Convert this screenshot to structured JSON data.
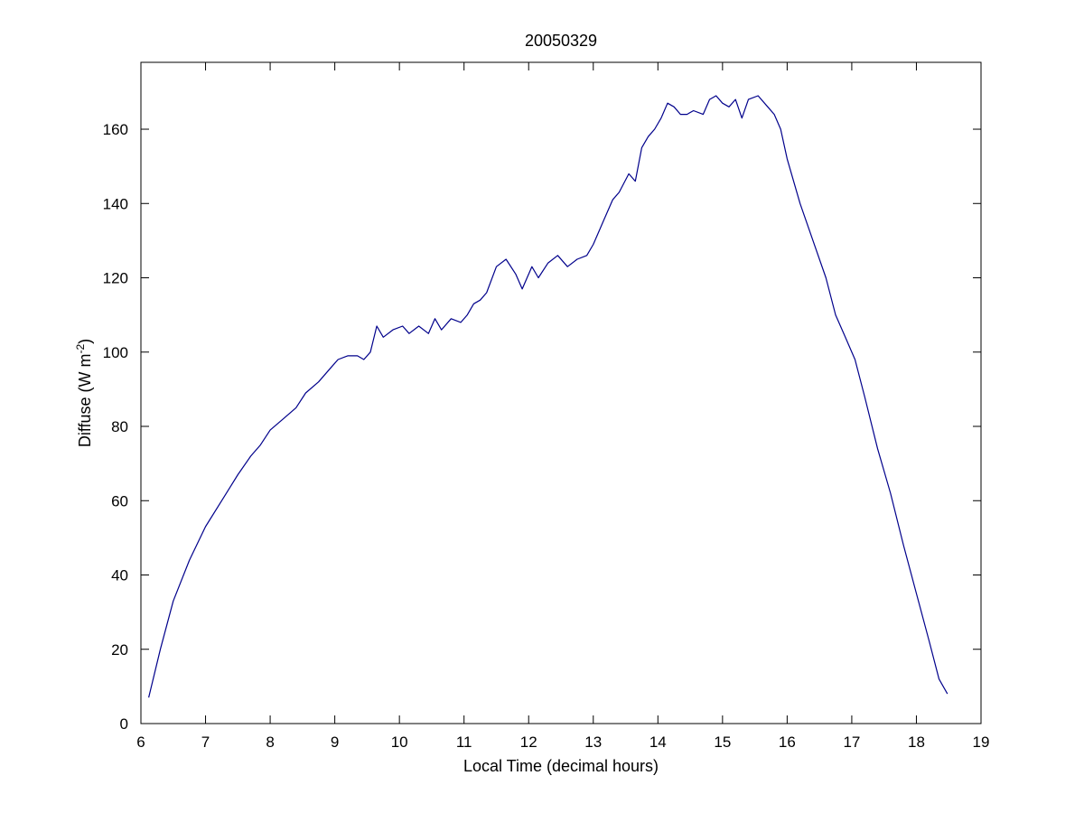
{
  "chart_data": {
    "type": "line",
    "title": "20050329",
    "xlabel": "Local Time (decimal hours)",
    "ylabel": {
      "main": "Diffuse (W m",
      "superscript": "-2",
      "close": ")"
    },
    "xlim": [
      6,
      19
    ],
    "ylim": [
      0,
      178
    ],
    "xticks": [
      6,
      7,
      8,
      9,
      10,
      11,
      12,
      13,
      14,
      15,
      16,
      17,
      18,
      19
    ],
    "yticks": [
      0,
      20,
      40,
      60,
      80,
      100,
      120,
      140,
      160
    ],
    "grid": false,
    "line_color": "#00008b",
    "series": [
      {
        "x": [
          6.12,
          6.3,
          6.5,
          6.75,
          7.0,
          7.25,
          7.5,
          7.7,
          7.85,
          8.0,
          8.2,
          8.4,
          8.55,
          8.75,
          8.95,
          9.05,
          9.2,
          9.35,
          9.45,
          9.55,
          9.65,
          9.75,
          9.9,
          10.05,
          10.15,
          10.3,
          10.45,
          10.55,
          10.65,
          10.8,
          10.95,
          11.05,
          11.15,
          11.25,
          11.35,
          11.5,
          11.65,
          11.8,
          11.9,
          12.05,
          12.15,
          12.3,
          12.45,
          12.6,
          12.75,
          12.9,
          13.0,
          13.15,
          13.3,
          13.4,
          13.55,
          13.65,
          13.75,
          13.85,
          13.95,
          14.05,
          14.15,
          14.25,
          14.35,
          14.45,
          14.55,
          14.7,
          14.8,
          14.9,
          15.0,
          15.1,
          15.2,
          15.3,
          15.4,
          15.55,
          15.7,
          15.8,
          15.9,
          16.0,
          16.2,
          16.4,
          16.6,
          16.75,
          16.9,
          17.05,
          17.2,
          17.4,
          17.6,
          17.8,
          18.0,
          18.2,
          18.35,
          18.48
        ],
        "y": [
          7,
          20,
          33,
          44,
          53,
          60,
          67,
          72,
          75,
          79,
          82,
          85,
          89,
          92,
          96,
          98,
          99,
          99,
          98,
          100,
          107,
          104,
          106,
          107,
          105,
          107,
          105,
          109,
          106,
          109,
          108,
          110,
          113,
          114,
          116,
          123,
          125,
          121,
          117,
          123,
          120,
          124,
          126,
          123,
          125,
          126,
          129,
          135,
          141,
          143,
          148,
          146,
          155,
          158,
          160,
          163,
          167,
          166,
          164,
          164,
          165,
          164,
          168,
          169,
          167,
          166,
          168,
          163,
          168,
          169,
          166,
          164,
          160,
          152,
          140,
          130,
          120,
          110,
          104,
          98,
          88,
          74,
          62,
          48,
          35,
          22,
          12,
          8
        ]
      }
    ]
  }
}
